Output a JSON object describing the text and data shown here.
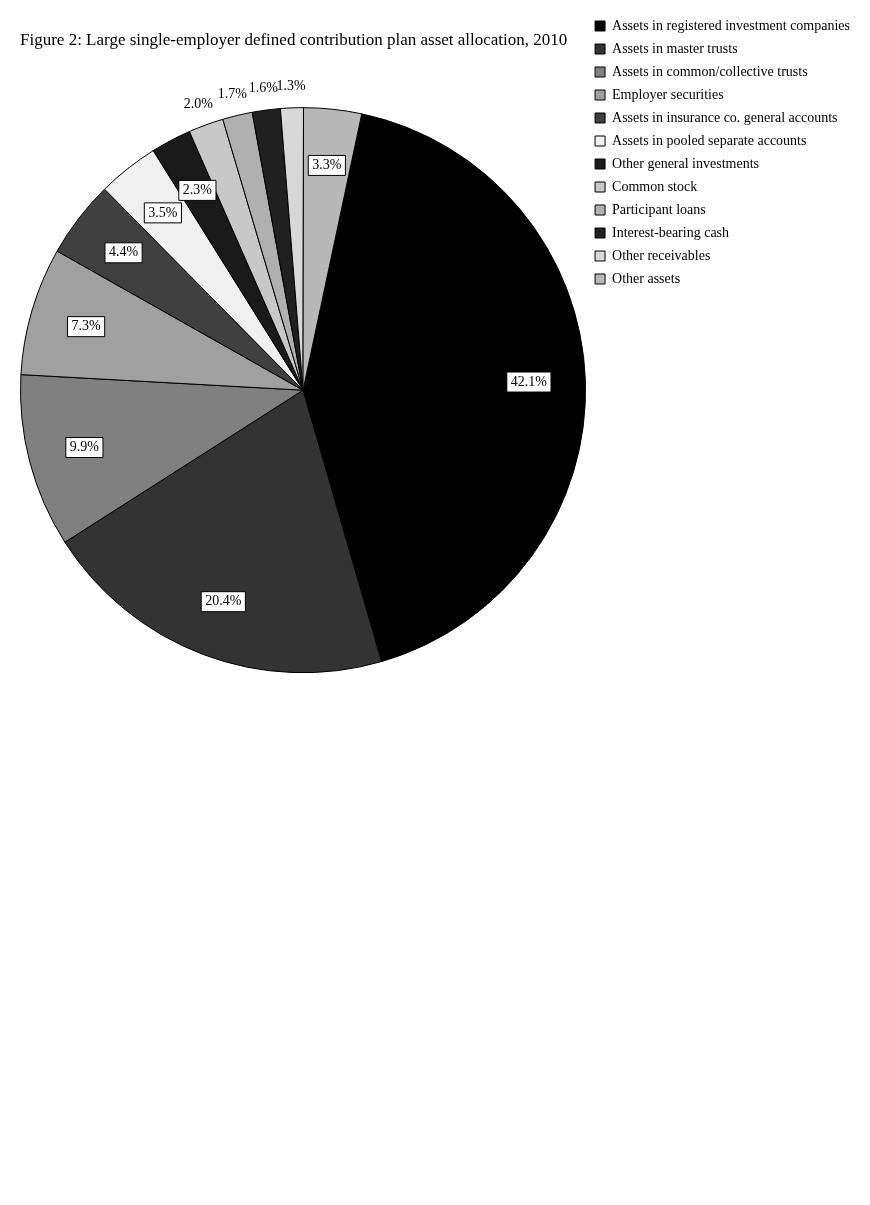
{
  "chart_data": {
    "type": "pie",
    "title": "Figure 2: Large single-employer defined contribution plan asset allocation, 2010",
    "categories": [
      "Assets in registered investment companies",
      "Assets in master trusts",
      "Assets in common/collective trusts",
      "Employer securities",
      "Assets in insurance co. general accounts",
      "Assets in pooled separate accounts",
      "Other general investments",
      "Common stock",
      "Participant loans",
      "Interest-bearing cash",
      "Other receivables",
      "Other assets"
    ],
    "values": [
      42.1,
      20.4,
      9.9,
      7.3,
      4.4,
      3.5,
      2.3,
      2.0,
      1.7,
      1.6,
      1.3,
      3.3
    ],
    "value_labels": [
      "42.1%",
      "20.4%",
      "9.9%",
      "7.3%",
      "4.4%",
      "3.5%",
      "2.3%",
      "2.0%",
      "1.7%",
      "1.6%",
      "1.3%",
      "3.3%"
    ],
    "colors": [
      "#000000",
      "#333333",
      "#808080",
      "#a0a0a0",
      "#404040",
      "#f0f0f0",
      "#1a1a1a",
      "#c8c8c8",
      "#b0b0b0",
      "#202020",
      "#d8d8d8",
      "#b8b8b8"
    ],
    "legend": "right"
  }
}
